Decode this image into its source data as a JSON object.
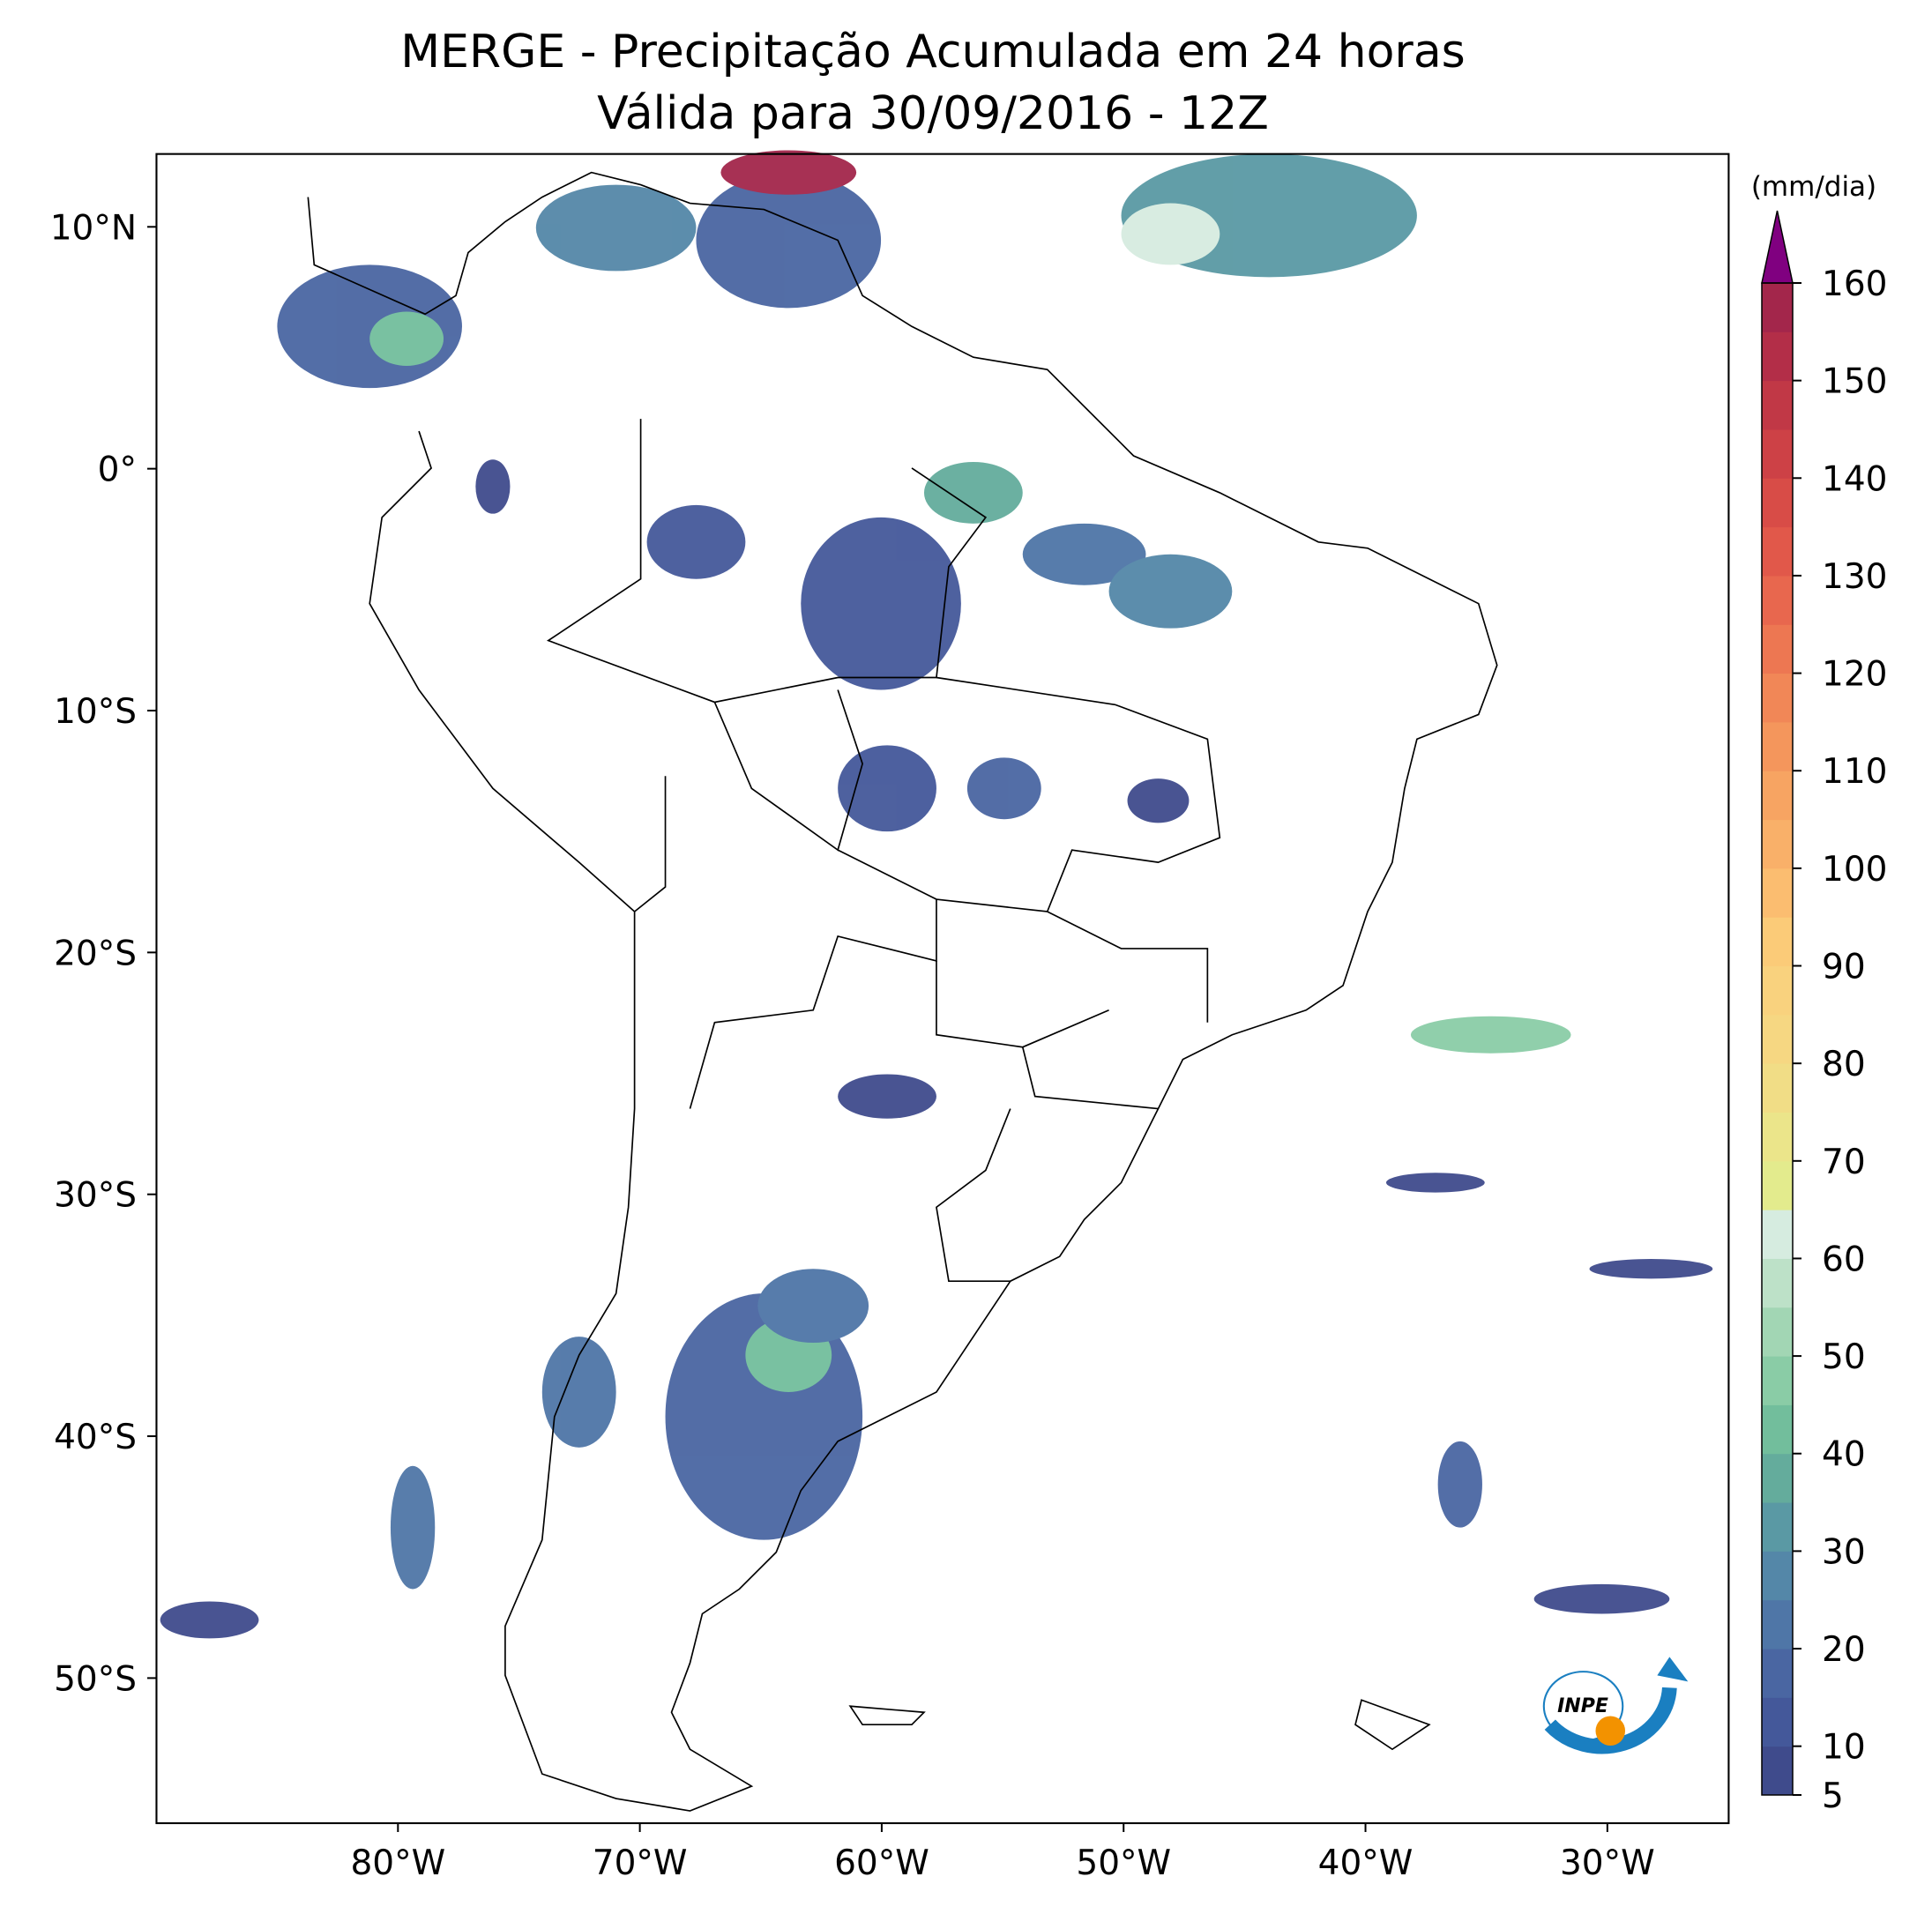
{
  "title": [
    "MERGE - Precipitação Acumulada em 24 horas",
    "Válida para 30/09/2016 - 12Z"
  ],
  "map": {
    "xlim": [
      -90,
      -25
    ],
    "ylim": [
      -56,
      13
    ],
    "xticks": [
      {
        "value": -80,
        "label": "80°W"
      },
      {
        "value": -70,
        "label": "70°W"
      },
      {
        "value": -60,
        "label": "60°W"
      },
      {
        "value": -50,
        "label": "50°W"
      },
      {
        "value": -40,
        "label": "40°W"
      },
      {
        "value": -30,
        "label": "30°W"
      }
    ],
    "yticks": [
      {
        "value": 10,
        "label": "10°N"
      },
      {
        "value": 0,
        "label": "0°"
      },
      {
        "value": -10,
        "label": "10°S"
      },
      {
        "value": -20,
        "label": "20°S"
      },
      {
        "value": -30,
        "label": "30°S"
      },
      {
        "value": -40,
        "label": "40°S"
      },
      {
        "value": -50,
        "label": "50°S"
      }
    ]
  },
  "colorbar": {
    "label": "(mm/dia)",
    "lim": [
      5,
      160
    ],
    "ticks": [
      5,
      10,
      20,
      30,
      40,
      50,
      60,
      70,
      80,
      90,
      100,
      110,
      120,
      130,
      140,
      150,
      160
    ],
    "colors": [
      "#3f4b8c",
      "#44589a",
      "#4a66a2",
      "#4f76a7",
      "#5487a8",
      "#5a99a4",
      "#64ac9c",
      "#72be9c",
      "#8acca6",
      "#a2d6b4",
      "#bde1c8",
      "#d6ece0",
      "#e3eb8d",
      "#ebe58a",
      "#f1dd86",
      "#f6d782",
      "#f9d27e",
      "#fbcb78",
      "#fbbd70",
      "#f9b069",
      "#f7a462",
      "#f4965c",
      "#f18757",
      "#ed7752",
      "#e8674e",
      "#e1584a",
      "#d84c47",
      "#cd4146",
      "#c13846",
      "#b32e48",
      "#a3264b"
    ],
    "extend_color": "#800080"
  },
  "logo": "INPE"
}
